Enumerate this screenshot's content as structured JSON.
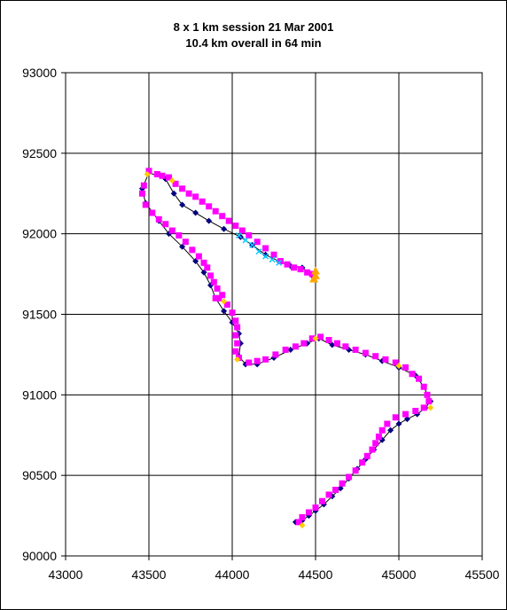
{
  "chart_data": {
    "type": "scatter",
    "title": "8 x 1 km session  21 Mar 2001",
    "subtitle": "10.4 km overall in 64 min",
    "xlabel": "",
    "ylabel": "",
    "xlim": [
      43000,
      45500
    ],
    "ylim": [
      90000,
      93000
    ],
    "xticks": [
      "43000",
      "43500",
      "44000",
      "44500",
      "45000",
      "45500"
    ],
    "yticks": [
      "90000",
      "90500",
      "91000",
      "91500",
      "92000",
      "92500",
      "93000"
    ],
    "grid": true,
    "legend": "none",
    "series": [
      {
        "marker": "diamond",
        "color": "#000080",
        "line": true,
        "values": [
          [
            44380,
            90210
          ],
          [
            44420,
            90220
          ],
          [
            44460,
            90250
          ],
          [
            44500,
            90280
          ],
          [
            44550,
            90320
          ],
          [
            44600,
            90370
          ],
          [
            44650,
            90420
          ],
          [
            44700,
            90480
          ],
          [
            44750,
            90540
          ],
          [
            44800,
            90600
          ],
          [
            44850,
            90660
          ],
          [
            44900,
            90720
          ],
          [
            44950,
            90780
          ],
          [
            45000,
            90820
          ],
          [
            45050,
            90850
          ],
          [
            45110,
            90880
          ],
          [
            45160,
            90920
          ],
          [
            45190,
            90960
          ],
          [
            45150,
            91050
          ],
          [
            45100,
            91120
          ],
          [
            45000,
            91170
          ],
          [
            44900,
            91210
          ],
          [
            44800,
            91250
          ],
          [
            44700,
            91280
          ],
          [
            44600,
            91310
          ],
          [
            44520,
            91350
          ],
          [
            44450,
            91320
          ],
          [
            44350,
            91280
          ],
          [
            44250,
            91230
          ],
          [
            44150,
            91190
          ],
          [
            44080,
            91190
          ],
          [
            44040,
            91240
          ],
          [
            44050,
            91320
          ],
          [
            44040,
            91380
          ],
          [
            44000,
            91450
          ],
          [
            43950,
            91520
          ],
          [
            43900,
            91600
          ],
          [
            43870,
            91680
          ],
          [
            43830,
            91760
          ],
          [
            43780,
            91830
          ],
          [
            43700,
            91920
          ],
          [
            43620,
            92000
          ],
          [
            43560,
            92080
          ],
          [
            43480,
            92190
          ],
          [
            43460,
            92280
          ],
          [
            43500,
            92380
          ],
          [
            43600,
            92340
          ],
          [
            43650,
            92250
          ],
          [
            43700,
            92180
          ],
          [
            43780,
            92130
          ],
          [
            43860,
            92080
          ],
          [
            43950,
            92030
          ],
          [
            44050,
            91980
          ],
          [
            44120,
            91930
          ],
          [
            44200,
            91870
          ],
          [
            44280,
            91830
          ],
          [
            44350,
            91800
          ],
          [
            44420,
            91790
          ],
          [
            44480,
            91740
          ]
        ]
      },
      {
        "marker": "square",
        "color": "#ff00ff",
        "line": false,
        "values": [
          [
            43500,
            92390
          ],
          [
            43550,
            92370
          ],
          [
            43580,
            92360
          ],
          [
            43620,
            92350
          ],
          [
            43660,
            92310
          ],
          [
            43700,
            92280
          ],
          [
            43740,
            92250
          ],
          [
            43780,
            92230
          ],
          [
            43820,
            92200
          ],
          [
            43860,
            92170
          ],
          [
            43900,
            92140
          ],
          [
            43940,
            92110
          ],
          [
            43980,
            92080
          ],
          [
            44020,
            92050
          ],
          [
            44060,
            92020
          ],
          [
            44100,
            91990
          ],
          [
            44150,
            91950
          ],
          [
            44200,
            91910
          ],
          [
            44250,
            91870
          ],
          [
            44290,
            91830
          ],
          [
            44330,
            91810
          ],
          [
            44370,
            91790
          ],
          [
            44410,
            91780
          ],
          [
            44450,
            91760
          ],
          [
            44480,
            91750
          ],
          [
            43470,
            92300
          ],
          [
            43460,
            92250
          ],
          [
            43480,
            92180
          ],
          [
            43520,
            92130
          ],
          [
            43560,
            92090
          ],
          [
            43600,
            92060
          ],
          [
            43640,
            92020
          ],
          [
            43680,
            91990
          ],
          [
            43720,
            91950
          ],
          [
            43760,
            91900
          ],
          [
            43800,
            91860
          ],
          [
            43830,
            91820
          ],
          [
            43850,
            91790
          ],
          [
            43870,
            91740
          ],
          [
            43890,
            91700
          ],
          [
            43910,
            91660
          ],
          [
            43940,
            91620
          ],
          [
            43970,
            91560
          ],
          [
            44000,
            91510
          ],
          [
            44020,
            91460
          ],
          [
            44030,
            91420
          ],
          [
            44020,
            91370
          ],
          [
            44030,
            91320
          ],
          [
            44020,
            91270
          ],
          [
            44040,
            91230
          ],
          [
            43920,
            91600
          ],
          [
            43900,
            91600
          ],
          [
            44100,
            91200
          ],
          [
            44150,
            91210
          ],
          [
            44200,
            91220
          ],
          [
            44260,
            91250
          ],
          [
            44320,
            91280
          ],
          [
            44380,
            91300
          ],
          [
            44430,
            91320
          ],
          [
            44480,
            91350
          ],
          [
            44530,
            91360
          ],
          [
            44580,
            91340
          ],
          [
            44630,
            91320
          ],
          [
            44680,
            91300
          ],
          [
            44740,
            91280
          ],
          [
            44800,
            91260
          ],
          [
            44860,
            91240
          ],
          [
            44920,
            91220
          ],
          [
            44980,
            91200
          ],
          [
            45040,
            91170
          ],
          [
            45080,
            91130
          ],
          [
            45120,
            91100
          ],
          [
            45150,
            91050
          ],
          [
            45170,
            91000
          ],
          [
            45180,
            90960
          ],
          [
            45150,
            90920
          ],
          [
            45100,
            90900
          ],
          [
            45040,
            90880
          ],
          [
            44980,
            90860
          ],
          [
            44930,
            90820
          ],
          [
            44900,
            90780
          ],
          [
            44880,
            90740
          ],
          [
            44860,
            90700
          ],
          [
            44840,
            90660
          ],
          [
            44810,
            90620
          ],
          [
            44780,
            90580
          ],
          [
            44740,
            90530
          ],
          [
            44700,
            90490
          ],
          [
            44660,
            90450
          ],
          [
            44620,
            90410
          ],
          [
            44580,
            90380
          ],
          [
            44540,
            90340
          ],
          [
            44500,
            90300
          ],
          [
            44460,
            90270
          ],
          [
            44420,
            90240
          ],
          [
            44400,
            90210
          ]
        ]
      },
      {
        "marker": "triangle",
        "color": "#ffa500",
        "line": false,
        "values": [
          [
            44500,
            91740
          ],
          [
            44500,
            91770
          ],
          [
            44490,
            91720
          ]
        ]
      },
      {
        "marker": "diamond",
        "color": "#ffcc00",
        "line": false,
        "values": [
          [
            43490,
            92370
          ],
          [
            43640,
            92330
          ],
          [
            43950,
            91580
          ],
          [
            44030,
            91220
          ],
          [
            44500,
            91350
          ],
          [
            45000,
            91180
          ],
          [
            45190,
            90920
          ],
          [
            44420,
            90190
          ]
        ]
      },
      {
        "marker": "x",
        "color": "#00ccff",
        "line": false,
        "values": [
          [
            44040,
            91990
          ],
          [
            44080,
            91960
          ],
          [
            44120,
            91930
          ],
          [
            44160,
            91890
          ],
          [
            44200,
            91860
          ],
          [
            44240,
            91840
          ],
          [
            44280,
            91820
          ]
        ]
      }
    ]
  }
}
